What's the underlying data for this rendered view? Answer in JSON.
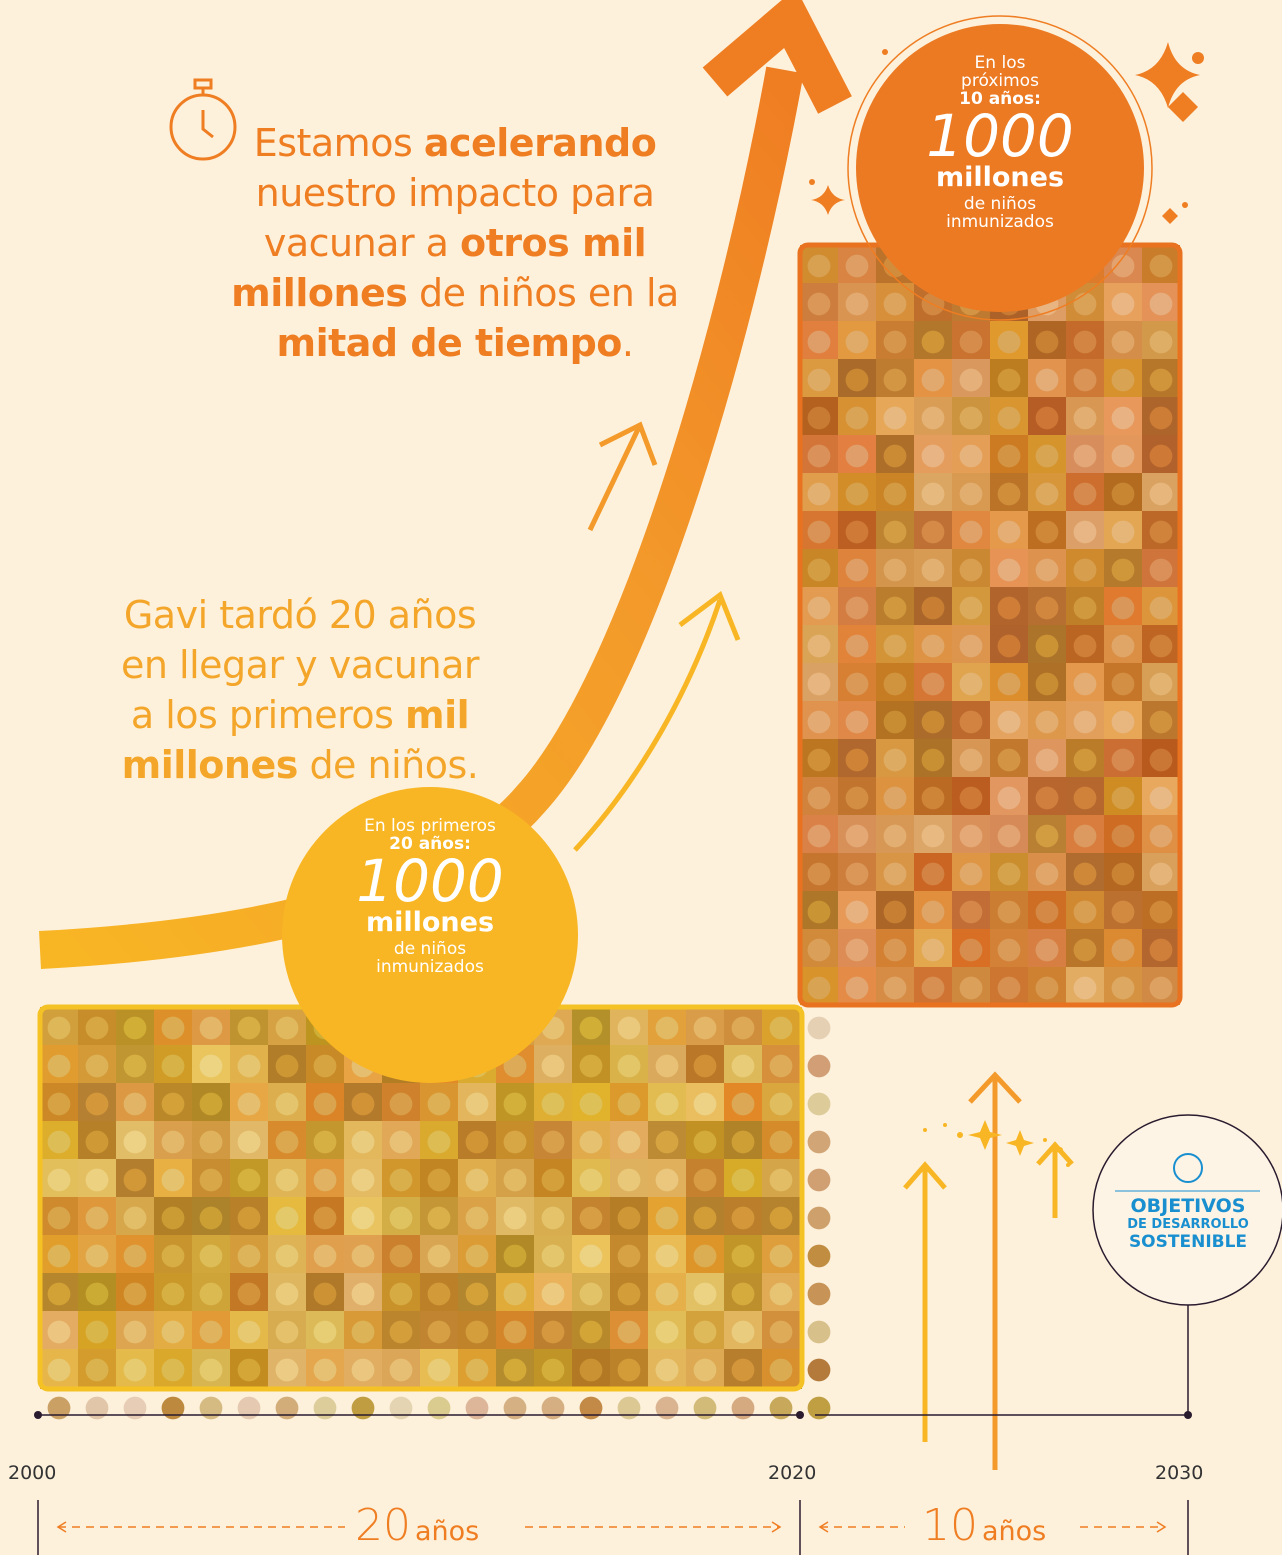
{
  "headline": {
    "lines": [
      [
        {
          "text": "Estamos "
        },
        {
          "text": "acelerando",
          "bold": true
        }
      ],
      [
        {
          "text": "nuestro impacto para"
        }
      ],
      [
        {
          "text": "vacunar a "
        },
        {
          "text": "otros mil",
          "bold": true
        }
      ],
      [
        {
          "text": "millones",
          "bold": true
        },
        {
          "text": " de niños en la"
        }
      ],
      [
        {
          "text": "mitad de tiempo",
          "bold": true
        },
        {
          "text": "."
        }
      ]
    ]
  },
  "history": {
    "lines": [
      [
        {
          "text": "Gavi tardó 20 años"
        }
      ],
      [
        {
          "text": "en llegar y vacunar"
        }
      ],
      [
        {
          "text": "a los primeros "
        },
        {
          "text": "mil",
          "bold": true
        }
      ],
      [
        {
          "text": "millones",
          "bold": true
        },
        {
          "text": " de niños."
        }
      ]
    ]
  },
  "first_circle": {
    "intro": "En los primeros",
    "period": "20 años:",
    "number": "1000",
    "unit": "millones",
    "caption": "de niños inmunizados"
  },
  "next_circle": {
    "intro": "En los próximos",
    "period": "10 años:",
    "number": "1000",
    "unit": "millones",
    "caption": "de niños inmunizados"
  },
  "sdg": {
    "line1": "OBJETIVOS",
    "line2": "DE DESARROLLO",
    "line3": "SOSTENIBLE"
  },
  "timeline": {
    "start": "2000",
    "middle": "2020",
    "end": "2030",
    "first_span": {
      "number": "20",
      "unit": "años"
    },
    "second_span": {
      "number": "10",
      "unit": "años"
    }
  }
}
